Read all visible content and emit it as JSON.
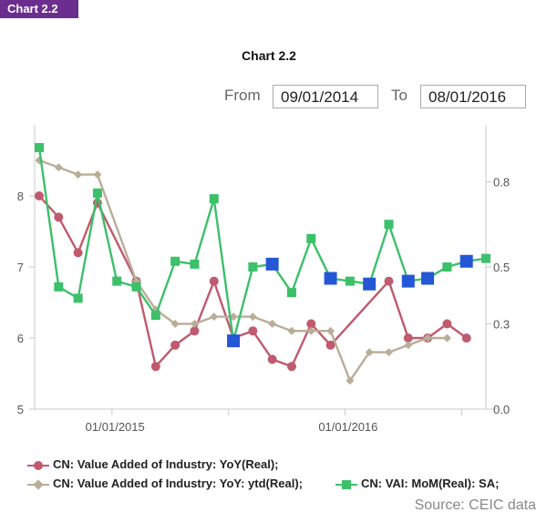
{
  "header": {
    "tag": "Chart 2.2"
  },
  "controls": {
    "from_label": "From",
    "from_value": "09/01/2014",
    "to_label": "To",
    "to_value": "08/01/2016"
  },
  "source": "Source: CEIC data",
  "chart_data": {
    "type": "line",
    "title": "Chart 2.2",
    "x": [
      "2014-09",
      "2014-10",
      "2014-11",
      "2014-12",
      "2015-01",
      "2015-02",
      "2015-03",
      "2015-04",
      "2015-05",
      "2015-06",
      "2015-07",
      "2015-08",
      "2015-09",
      "2015-10",
      "2015-11",
      "2015-12",
      "2016-01",
      "2016-02",
      "2016-03",
      "2016-04",
      "2016-05",
      "2016-06",
      "2016-07",
      "2016-08"
    ],
    "x_tick_labels": [
      "01/01/2015",
      "01/01/2016"
    ],
    "y_left": {
      "ticks": [
        5,
        6,
        7,
        8
      ],
      "range": [
        5,
        9
      ]
    },
    "y_right": {
      "ticks": [
        "0.0",
        "0.3",
        "0.5",
        "0.8"
      ],
      "range": [
        0,
        1.0
      ]
    },
    "series": [
      {
        "name": "CN: Value Added of Industry: YoY(Real);",
        "axis": "left",
        "color": "#c05a6e",
        "marker": "circle",
        "values": [
          8.0,
          7.7,
          7.2,
          7.9,
          null,
          6.8,
          5.6,
          5.9,
          6.1,
          6.8,
          6.0,
          6.1,
          5.7,
          5.6,
          6.2,
          5.9,
          null,
          null,
          6.8,
          6.0,
          6.0,
          6.2,
          6.0,
          null
        ]
      },
      {
        "name": "CN: Value Added of Industry: YoY: ytd(Real);",
        "axis": "left",
        "color": "#b8ae98",
        "marker": "diamond",
        "values": [
          8.5,
          8.4,
          8.3,
          8.3,
          null,
          6.8,
          6.4,
          6.2,
          6.2,
          6.3,
          6.3,
          6.3,
          6.2,
          6.1,
          6.1,
          6.1,
          5.4,
          5.8,
          5.8,
          5.9,
          6.0,
          6.0,
          null,
          null
        ]
      },
      {
        "name": "CN: VAI: MoM(Real): SA;",
        "axis": "right",
        "color": "#3cc06a",
        "marker": "square",
        "values": [
          0.92,
          0.43,
          0.39,
          0.76,
          0.45,
          0.43,
          0.33,
          0.52,
          0.51,
          0.74,
          0.24,
          0.5,
          0.51,
          0.41,
          0.6,
          0.46,
          0.45,
          0.44,
          0.65,
          0.45,
          0.46,
          0.5,
          0.52,
          0.53
        ],
        "highlighted_indices": [
          10,
          12,
          15,
          17,
          19,
          20,
          22
        ],
        "highlight_color": "#2457d6"
      }
    ],
    "grid": false,
    "legend_position": "bottom"
  }
}
